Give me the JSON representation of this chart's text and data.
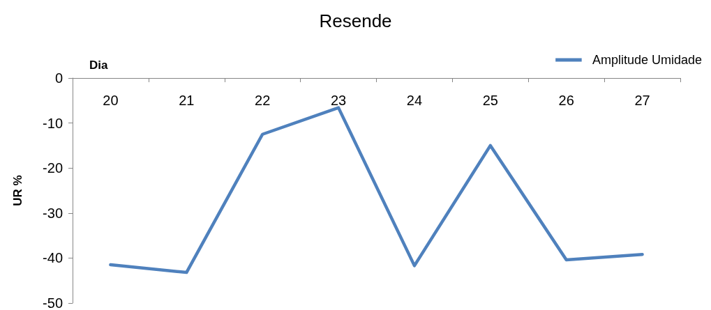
{
  "chart_data": {
    "type": "line",
    "title": "Resende",
    "xlabel": "Dia",
    "ylabel": "UR %",
    "categories": [
      "20",
      "21",
      "22",
      "23",
      "24",
      "25",
      "26",
      "27"
    ],
    "series": [
      {
        "name": "Amplitude Umidade",
        "color": "#4f81bd",
        "values": [
          -41.5,
          -43.2,
          -12.5,
          -6.6,
          -41.7,
          -15,
          -40.4,
          -39.2
        ]
      }
    ],
    "ylim": [
      -50,
      0
    ],
    "yticks": [
      0,
      -10,
      -20,
      -30,
      -40,
      -50
    ],
    "grid": false,
    "legend": "top right",
    "marker": "none",
    "line_style": "solid"
  }
}
